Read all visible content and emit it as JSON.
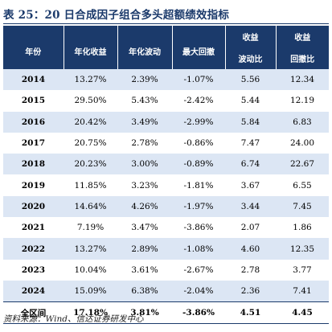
{
  "title": "表 25：20 日合成因子组合多头超额绩效指标",
  "table": {
    "headers": {
      "year": "年份",
      "annual_return": "年化收益",
      "annual_vol": "年化波动",
      "max_drawdown": "最大回撤",
      "return_vol_line1": "收益",
      "return_vol_line2": "波动比",
      "return_dd_line1": "收益",
      "return_dd_line2": "回撤比"
    },
    "rows": [
      {
        "year": "2014",
        "annual_return": "13.27%",
        "annual_vol": "2.39%",
        "max_drawdown": "-1.07%",
        "return_vol": "5.56",
        "return_dd": "12.34"
      },
      {
        "year": "2015",
        "annual_return": "29.50%",
        "annual_vol": "5.43%",
        "max_drawdown": "-2.42%",
        "return_vol": "5.44",
        "return_dd": "12.19"
      },
      {
        "year": "2016",
        "annual_return": "20.42%",
        "annual_vol": "3.49%",
        "max_drawdown": "-2.99%",
        "return_vol": "5.84",
        "return_dd": "6.83"
      },
      {
        "year": "2017",
        "annual_return": "20.75%",
        "annual_vol": "2.78%",
        "max_drawdown": "-0.86%",
        "return_vol": "7.47",
        "return_dd": "24.00"
      },
      {
        "year": "2018",
        "annual_return": "20.23%",
        "annual_vol": "3.00%",
        "max_drawdown": "-0.89%",
        "return_vol": "6.74",
        "return_dd": "22.67"
      },
      {
        "year": "2019",
        "annual_return": "11.85%",
        "annual_vol": "3.23%",
        "max_drawdown": "-1.81%",
        "return_vol": "3.67",
        "return_dd": "6.55"
      },
      {
        "year": "2020",
        "annual_return": "14.64%",
        "annual_vol": "4.26%",
        "max_drawdown": "-1.97%",
        "return_vol": "3.44",
        "return_dd": "7.45"
      },
      {
        "year": "2021",
        "annual_return": "7.19%",
        "annual_vol": "3.47%",
        "max_drawdown": "-3.86%",
        "return_vol": "2.07",
        "return_dd": "1.86"
      },
      {
        "year": "2022",
        "annual_return": "13.27%",
        "annual_vol": "2.89%",
        "max_drawdown": "-1.08%",
        "return_vol": "4.60",
        "return_dd": "12.35"
      },
      {
        "year": "2023",
        "annual_return": "10.04%",
        "annual_vol": "3.61%",
        "max_drawdown": "-2.67%",
        "return_vol": "2.78",
        "return_dd": "3.77"
      },
      {
        "year": "2024",
        "annual_return": "15.09%",
        "annual_vol": "6.38%",
        "max_drawdown": "-2.04%",
        "return_vol": "2.36",
        "return_dd": "7.41"
      }
    ],
    "total": {
      "year": "全区间",
      "annual_return": "17.18%",
      "annual_vol": "3.81%",
      "max_drawdown": "-3.86%",
      "return_vol": "4.51",
      "return_dd": "4.45"
    }
  },
  "source": "资料来源：Wind、信达证券研发中心",
  "colors": {
    "header_bg": "#1b3a6b",
    "shade": "#dce6f4"
  }
}
